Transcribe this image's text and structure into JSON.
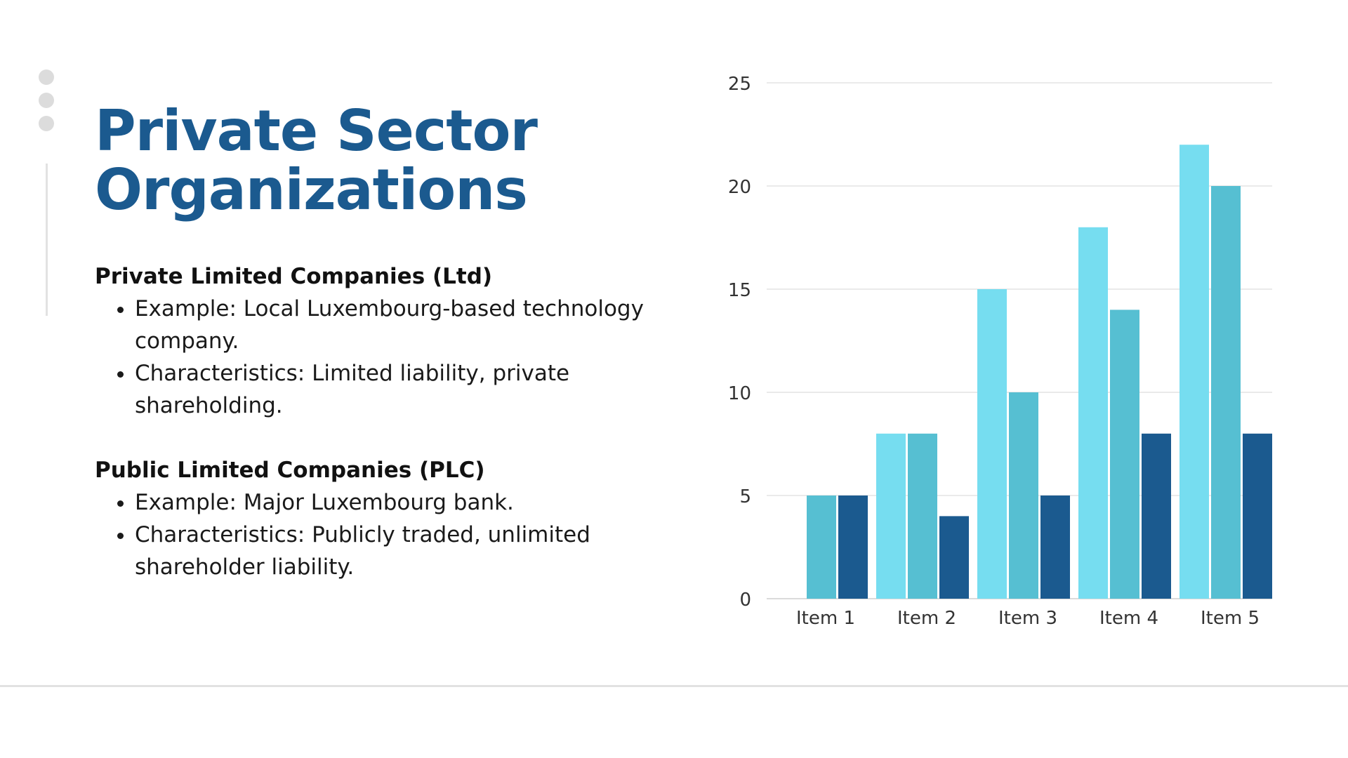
{
  "slide": {
    "title_line1": "Private Sector",
    "title_line2": "Organizations",
    "sections": [
      {
        "heading": "Private Limited Companies (Ltd)",
        "bullets": [
          "Example: Local Luxembourg-based technology company.",
          "Characteristics: Limited liability, private shareholding."
        ]
      },
      {
        "heading": "Public Limited Companies (PLC)",
        "bullets": [
          "Example: Major Luxembourg bank.",
          "Characteristics: Publicly traded, unlimited shareholder liability."
        ]
      }
    ]
  },
  "colors": {
    "title": "#1b5a8f",
    "series": [
      "#76ddf0",
      "#56bfd2",
      "#1b5a8f"
    ],
    "decor": "#dcdcdc"
  },
  "chart_data": {
    "type": "bar",
    "categories": [
      "Item 1",
      "Item 2",
      "Item 3",
      "Item 4",
      "Item 5"
    ],
    "series": [
      {
        "values": [
          0,
          8,
          15,
          18,
          22
        ]
      },
      {
        "values": [
          5,
          8,
          10,
          14,
          20
        ]
      },
      {
        "values": [
          5,
          4,
          5,
          8,
          8
        ]
      }
    ],
    "ylim": [
      0,
      25
    ],
    "yticks": [
      0,
      5,
      10,
      15,
      20,
      25
    ],
    "grid": true,
    "legend": "none"
  }
}
